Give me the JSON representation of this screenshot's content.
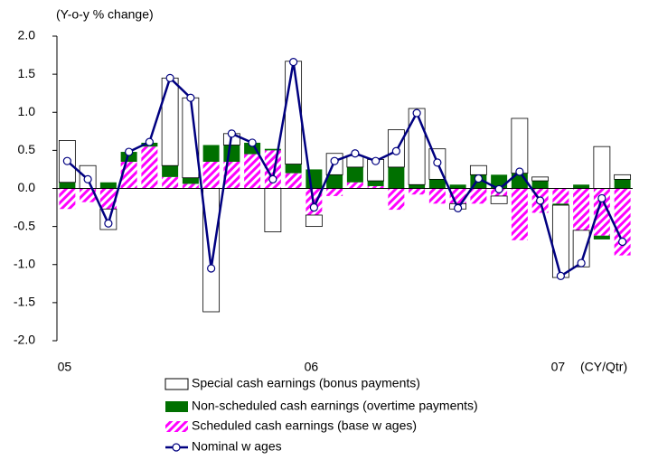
{
  "chart_data": {
    "type": "bar",
    "y_label": "(Y-o-y % change)",
    "x_label": "(CY/Qtr)",
    "categories": [
      "05",
      null,
      null,
      null,
      null,
      null,
      null,
      null,
      null,
      null,
      null,
      null,
      "06",
      null,
      null,
      null,
      null,
      null,
      null,
      null,
      null,
      null,
      null,
      null,
      "07",
      null,
      null,
      null
    ],
    "ylim": [
      -2.0,
      2.0
    ],
    "yticks": [
      {
        "value": 2,
        "label": "2.0"
      },
      {
        "value": 1.5,
        "label": "1.5"
      },
      {
        "value": 1,
        "label": "1.0"
      },
      {
        "value": 0.5,
        "label": "0.5"
      },
      {
        "value": 0,
        "label": "0.0"
      },
      {
        "value": -0.5,
        "label": "-0.5"
      },
      {
        "value": -1,
        "label": "-1.0"
      },
      {
        "value": -1.5,
        "label": "-1.5"
      },
      {
        "value": -2,
        "label": "-2.0"
      }
    ],
    "grid": false,
    "legend": "bottom",
    "series": [
      {
        "name": "Special cash earnings (bonus payments)",
        "type": "bar",
        "color": "#ffffff",
        "values": [
          0.55,
          0.3,
          -0.27,
          0,
          0,
          1.15,
          1.05,
          -1.62,
          0.15,
          0,
          -0.57,
          1.35,
          -0.15,
          0.28,
          0.15,
          0.28,
          0.49,
          1.0,
          0.4,
          -0.07,
          0.12,
          -0.1,
          0.72,
          0.05,
          -0.95,
          -0.48,
          0.55,
          0.06
        ]
      },
      {
        "name": "Non-scheduled cash earnings (overtime payments)",
        "type": "bar",
        "color": "#007000",
        "values": [
          0.08,
          0,
          0.08,
          0.13,
          0.05,
          0.15,
          0.08,
          0.22,
          0.22,
          0.15,
          0.02,
          0.12,
          0.25,
          0.18,
          0.2,
          0.07,
          0.28,
          0.05,
          0.12,
          0.05,
          0.18,
          0.18,
          0.2,
          0.1,
          -0.02,
          0.05,
          -0.05,
          0.12
        ]
      },
      {
        "name": "Scheduled cash earnings (base w ages)",
        "type": "bar",
        "color": "#ff00ff",
        "pattern": "diagonal",
        "values": [
          -0.27,
          -0.18,
          -0.27,
          0.35,
          0.55,
          0.15,
          0.06,
          0.35,
          0.35,
          0.45,
          0.5,
          0.2,
          -0.35,
          -0.1,
          0.08,
          0.03,
          -0.28,
          -0.08,
          -0.2,
          -0.2,
          -0.2,
          -0.1,
          -0.68,
          -0.32,
          -0.2,
          -0.55,
          -0.62,
          -0.88
        ]
      },
      {
        "name": "Nominal w ages",
        "type": "line",
        "color": "#000080",
        "values": [
          0.36,
          0.12,
          -0.46,
          0.48,
          0.61,
          1.45,
          1.19,
          -1.05,
          0.72,
          0.6,
          0.12,
          1.66,
          -0.25,
          0.36,
          0.46,
          0.36,
          0.49,
          0.99,
          0.34,
          -0.26,
          0.13,
          -0.01,
          0.22,
          -0.16,
          -1.15,
          -0.98,
          -0.13,
          -0.7
        ]
      }
    ]
  }
}
